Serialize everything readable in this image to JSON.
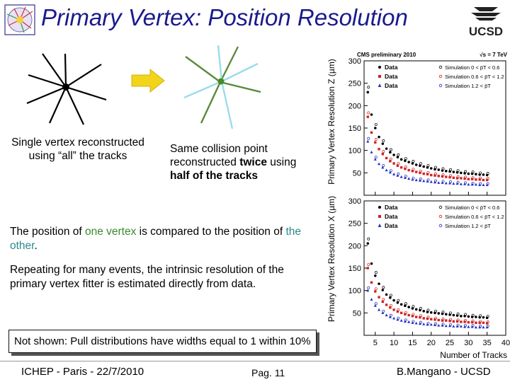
{
  "title": "Primary Vertex: Position Resolution",
  "caption_left": "Single vertex reconstructed using “all” the tracks",
  "caption_right": {
    "part1": "Same collision point reconstructed ",
    "bold1": "twice",
    "part2": " using ",
    "bold2": "half of the tracks"
  },
  "para1": {
    "a": "The position of ",
    "one_vertex": "one vertex",
    "b": " is compared to the position of ",
    "the_other": "the other",
    "c": "."
  },
  "para2": "Repeating for many events, the intrinsic resolution of the primary vertex fitter is estimated directly from data.",
  "note": "Not shown: Pull distributions have widths equal to 1 within 10%",
  "footer": {
    "left": "ICHEP - Paris - 22/7/2010",
    "middle": "Pag. 11",
    "right": "B.Mangano - UCSD"
  },
  "logo_right_text": "UCSD",
  "plot": {
    "header_left": "CMS preliminary 2010",
    "header_right": "√s = 7 TeV",
    "y_label_top": "Primary Vertex Resolution Z (µm)",
    "y_label_bottom": "Primary Vertex Resolution X (µm)",
    "x_label": "Number of Tracks",
    "x_ticks": [
      "5",
      "10",
      "15",
      "20",
      "25",
      "30",
      "35",
      "40"
    ],
    "y_ticks": [
      "50",
      "100",
      "150",
      "200",
      "250",
      "300"
    ],
    "legend": [
      {
        "data": "Data",
        "sim": "Simulation 0 < p̄T < 0.6"
      },
      {
        "data": "Data",
        "sim": "Simulation 0.6 < p̄T < 1.2"
      },
      {
        "data": "Data",
        "sim": "Simulation 1.2 < p̄T"
      }
    ]
  },
  "chart_data": [
    {
      "type": "scatter",
      "title": "",
      "xlabel": "Number of Tracks",
      "ylabel": "Primary Vertex Resolution Z (µm)",
      "xlim": [
        2,
        40
      ],
      "ylim": [
        0,
        300
      ],
      "x": [
        3,
        4,
        5,
        6,
        7,
        8,
        9,
        10,
        11,
        12,
        13,
        14,
        15,
        16,
        17,
        18,
        19,
        20,
        21,
        22,
        23,
        24,
        25,
        26,
        27,
        28,
        29,
        30,
        31,
        32,
        33,
        34,
        35
      ],
      "series": [
        {
          "name": "Data",
          "values": [
            230,
            180,
            150,
            130,
            115,
            104,
            96,
            90,
            85,
            80,
            77,
            74,
            71,
            68,
            66,
            64,
            62,
            60,
            58,
            57,
            55,
            54,
            53,
            52,
            51,
            50,
            49,
            48,
            48,
            47,
            46,
            46,
            45
          ]
        },
        {
          "name": "Data",
          "values": [
            175,
            140,
            118,
            103,
            92,
            83,
            76,
            71,
            66,
            62,
            59,
            56,
            54,
            52,
            50,
            48,
            47,
            45,
            44,
            43,
            42,
            41,
            40,
            39,
            38,
            38,
            37,
            36,
            36,
            35,
            35,
            34,
            34
          ]
        },
        {
          "name": "Data",
          "values": [
            120,
            96,
            80,
            70,
            62,
            56,
            51,
            47,
            44,
            41,
            39,
            37,
            35,
            34,
            33,
            32,
            31,
            30,
            29,
            28,
            28,
            27,
            27,
            26,
            26,
            25,
            25,
            24,
            24,
            24,
            23,
            23,
            23
          ]
        }
      ]
    },
    {
      "type": "scatter",
      "title": "",
      "xlabel": "Number of Tracks",
      "ylabel": "Primary Vertex Resolution X (µm)",
      "xlim": [
        2,
        40
      ],
      "ylim": [
        0,
        300
      ],
      "x": [
        3,
        4,
        5,
        6,
        7,
        8,
        9,
        10,
        11,
        12,
        13,
        14,
        15,
        16,
        17,
        18,
        19,
        20,
        21,
        22,
        23,
        24,
        25,
        26,
        27,
        28,
        29,
        30,
        31,
        32,
        33,
        34,
        35
      ],
      "series": [
        {
          "name": "Data",
          "values": [
            205,
            160,
            133,
            115,
            101,
            91,
            84,
            78,
            73,
            69,
            66,
            63,
            60,
            58,
            56,
            54,
            52,
            51,
            50,
            49,
            48,
            47,
            46,
            45,
            44,
            43,
            43,
            42,
            41,
            41,
            40,
            40,
            39
          ]
        },
        {
          "name": "Data",
          "values": [
            150,
            118,
            98,
            85,
            75,
            68,
            62,
            57,
            53,
            50,
            47,
            45,
            43,
            41,
            40,
            38,
            37,
            36,
            35,
            34,
            33,
            33,
            32,
            31,
            31,
            30,
            30,
            29,
            29,
            28,
            28,
            28,
            27
          ]
        },
        {
          "name": "Data",
          "values": [
            100,
            80,
            66,
            57,
            50,
            45,
            41,
            38,
            35,
            33,
            31,
            30,
            28,
            27,
            26,
            25,
            24,
            24,
            23,
            22,
            22,
            21,
            21,
            20,
            20,
            20,
            19,
            19,
            19,
            18,
            18,
            18,
            18
          ]
        }
      ]
    }
  ]
}
